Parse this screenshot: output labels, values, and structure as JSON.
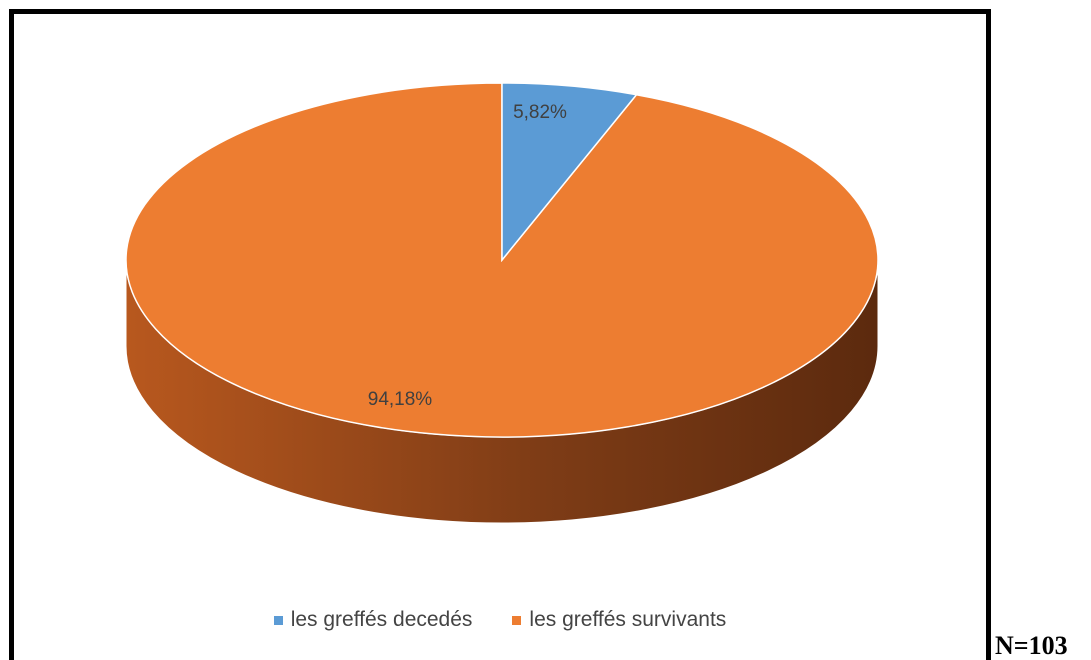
{
  "chart_data": {
    "type": "pie",
    "style": "3d",
    "categories": [
      "les greffés decedés",
      "les greffés survivants"
    ],
    "values": [
      5.82,
      94.18
    ],
    "data_labels": [
      "5,82%",
      "94,18%"
    ],
    "colors": [
      "#5B9BD5",
      "#ED7D31"
    ],
    "legend_position": "bottom",
    "title": "",
    "xlabel": "",
    "ylabel": ""
  },
  "annotation": {
    "n_label": "N=103"
  }
}
